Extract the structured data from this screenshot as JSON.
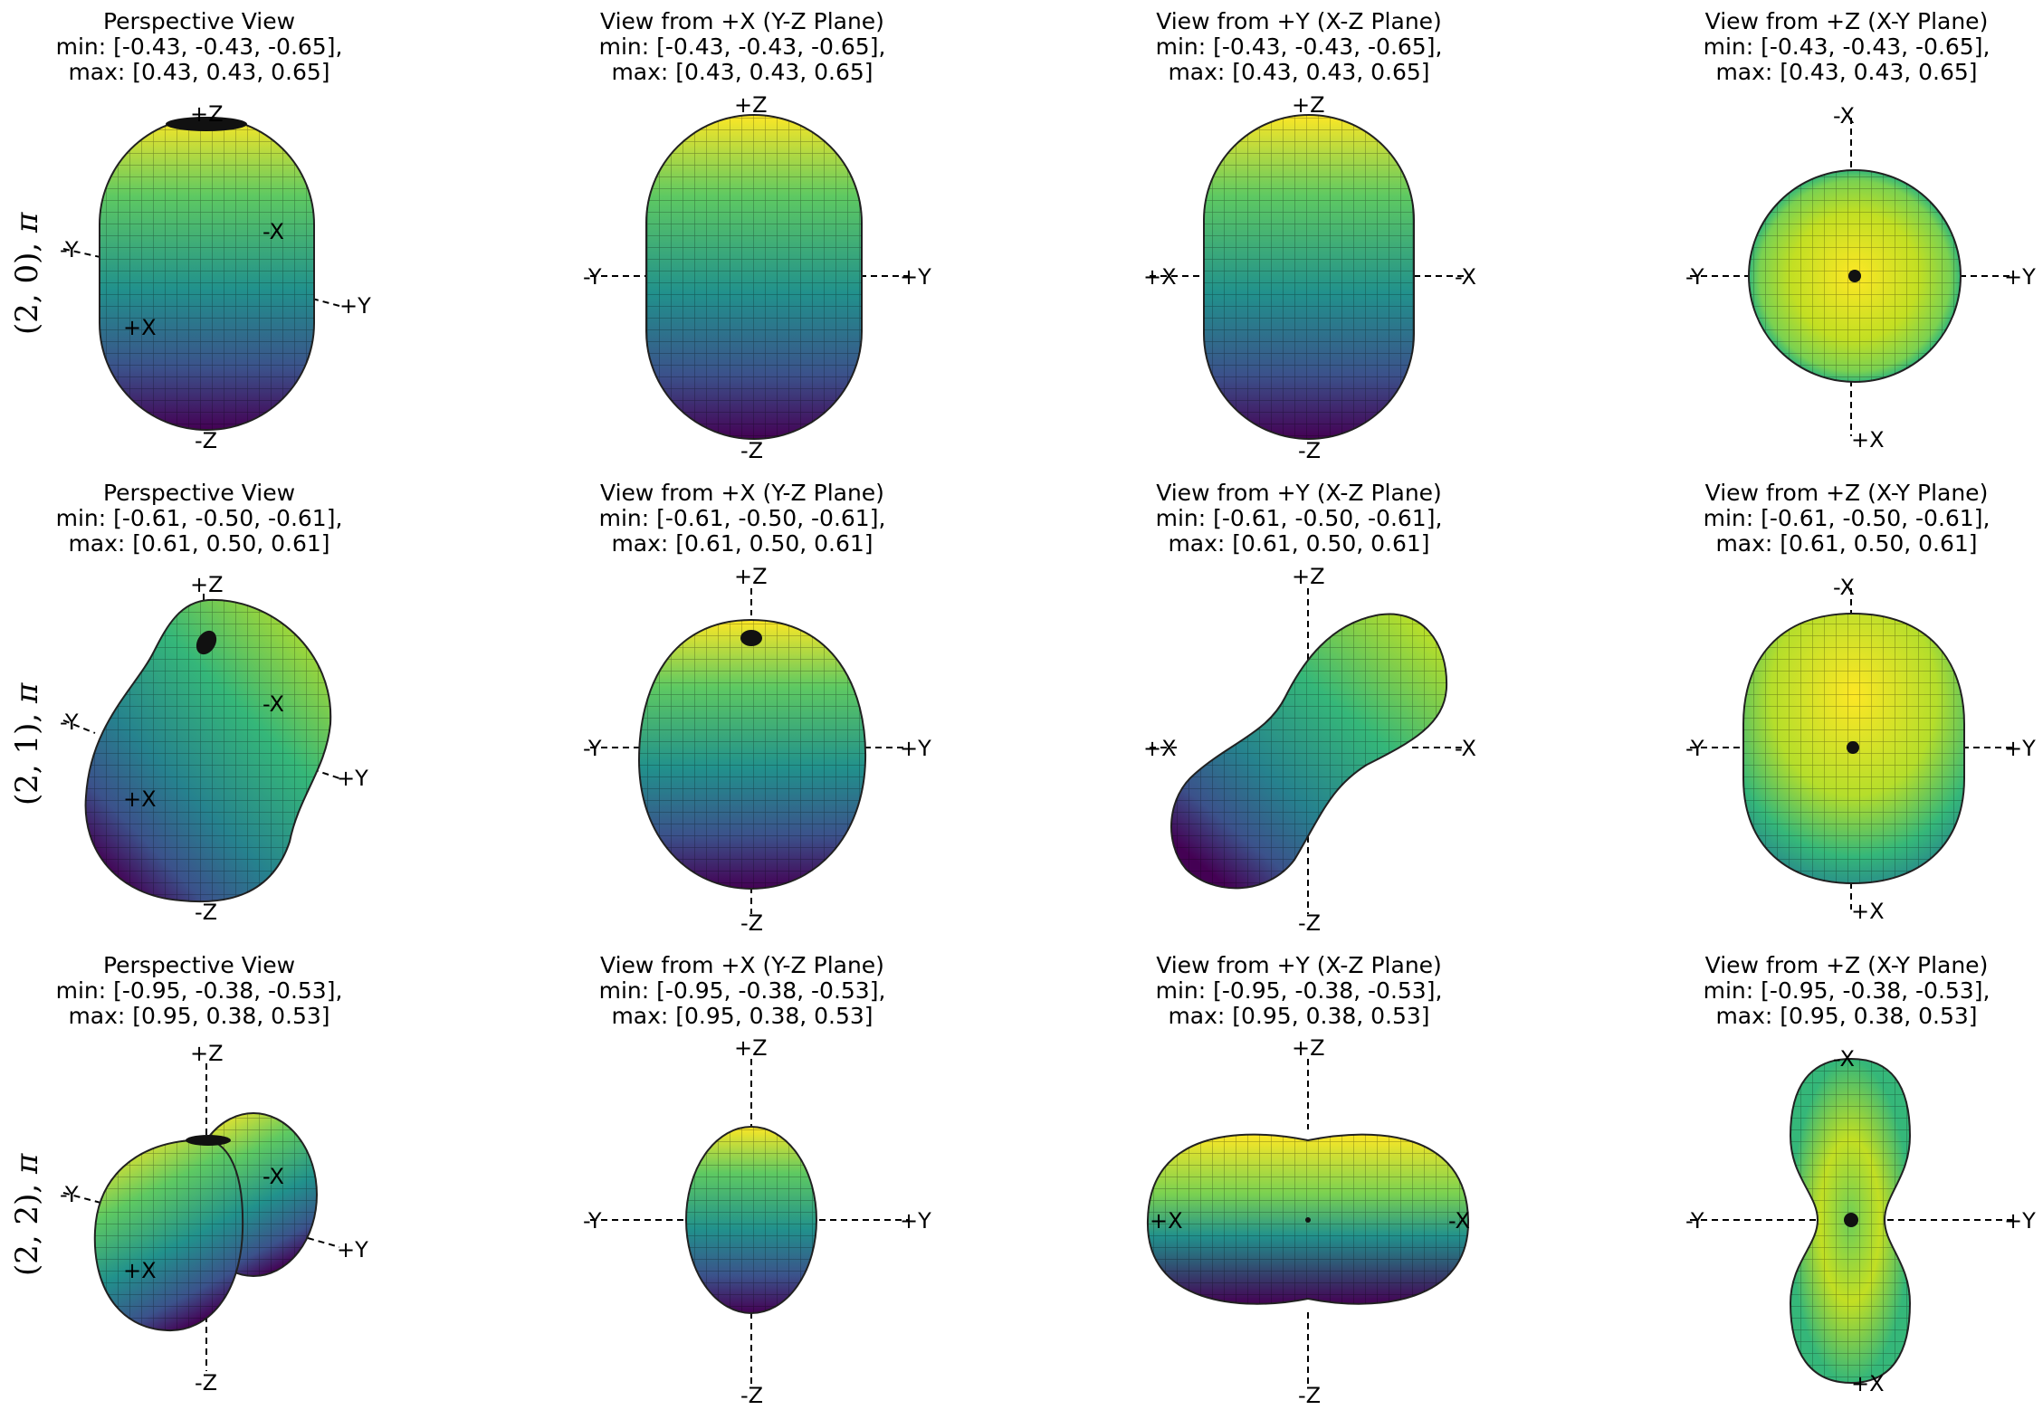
{
  "rows": [
    {
      "label": "(2, 0),",
      "label_symbol": "π",
      "panels": [
        {
          "view": "Perspective View",
          "min": "min: [-0.43, -0.43, -0.65],",
          "max": "max: [0.43, 0.43, 0.65]",
          "axes": [
            "+Z",
            "-Z",
            "-Y",
            "+Y",
            "+X",
            "-X"
          ]
        },
        {
          "view": "View from +X (Y-Z Plane)",
          "min": "min: [-0.43, -0.43, -0.65],",
          "max": "max: [0.43, 0.43, 0.65]",
          "axes": [
            "+Z",
            "-Z",
            "-Y",
            "+Y"
          ]
        },
        {
          "view": "View from +Y (X-Z Plane)",
          "min": "min: [-0.43, -0.43, -0.65],",
          "max": "max: [0.43, 0.43, 0.65]",
          "axes": [
            "+Z",
            "-Z",
            "+X",
            "-X"
          ]
        },
        {
          "view": "View from +Z (X-Y Plane)",
          "min": "min: [-0.43, -0.43, -0.65],",
          "max": "max: [0.43, 0.43, 0.65]",
          "axes": [
            "-X",
            "+X",
            "-Y",
            "+Y"
          ]
        }
      ]
    },
    {
      "label": "(2, 1),",
      "label_symbol": "π",
      "panels": [
        {
          "view": "Perspective View",
          "min": "min: [-0.61, -0.50, -0.61],",
          "max": "max: [0.61, 0.50, 0.61]",
          "axes": [
            "+Z",
            "-Z",
            "-Y",
            "+Y",
            "+X",
            "-X"
          ]
        },
        {
          "view": "View from +X (Y-Z Plane)",
          "min": "min: [-0.61, -0.50, -0.61],",
          "max": "max: [0.61, 0.50, 0.61]",
          "axes": [
            "+Z",
            "-Z",
            "-Y",
            "+Y"
          ]
        },
        {
          "view": "View from +Y (X-Z Plane)",
          "min": "min: [-0.61, -0.50, -0.61],",
          "max": "max: [0.61, 0.50, 0.61]",
          "axes": [
            "+Z",
            "-Z",
            "+X",
            "-X"
          ]
        },
        {
          "view": "View from +Z (X-Y Plane)",
          "min": "min: [-0.61, -0.50, -0.61],",
          "max": "max: [0.61, 0.50, 0.61]",
          "axes": [
            "-X",
            "+X",
            "-Y",
            "+Y"
          ]
        }
      ]
    },
    {
      "label": "(2, 2),",
      "label_symbol": "π",
      "panels": [
        {
          "view": "Perspective View",
          "min": "min: [-0.95, -0.38, -0.53],",
          "max": "max: [0.95, 0.38, 0.53]",
          "axes": [
            "+Z",
            "-Z",
            "-Y",
            "+Y",
            "+X",
            "-X"
          ]
        },
        {
          "view": "View from +X (Y-Z Plane)",
          "min": "min: [-0.95, -0.38, -0.53],",
          "max": "max: [0.95, 0.38, 0.53]",
          "axes": [
            "+Z",
            "-Z",
            "-Y",
            "+Y"
          ]
        },
        {
          "view": "View from +Y (X-Z Plane)",
          "min": "min: [-0.95, -0.38, -0.53],",
          "max": "max: [0.95, 0.38, 0.53]",
          "axes": [
            "+Z",
            "-Z",
            "+X",
            "-X"
          ]
        },
        {
          "view": "View from +Z (X-Y Plane)",
          "min": "min: [-0.95, -0.38, -0.53],",
          "max": "max: [0.95, 0.38, 0.53]",
          "axes": [
            "-X",
            "+X",
            "-Y",
            "+Y"
          ]
        }
      ]
    }
  ],
  "colormap": [
    "#440154",
    "#3b528b",
    "#21918c",
    "#5ec962",
    "#fde725"
  ]
}
